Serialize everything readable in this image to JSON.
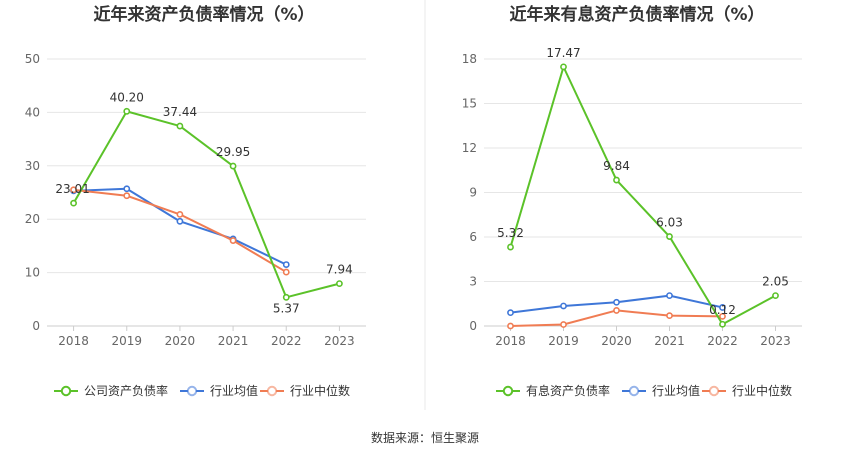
{
  "chart_data": [
    {
      "type": "line",
      "title": "近年来资产负债率情况（%）",
      "categories": [
        "2018",
        "2019",
        "2020",
        "2021",
        "2022",
        "2023"
      ],
      "ylim": [
        0,
        50
      ],
      "yticks": [
        0,
        10,
        20,
        30,
        40,
        50
      ],
      "series": [
        {
          "name": "公司资产负债率",
          "color": "#5bc229",
          "values": [
            23.01,
            40.2,
            37.44,
            29.95,
            5.37,
            7.94
          ],
          "labels": [
            "23.01",
            "40.20",
            "37.44",
            "29.95",
            "5.37",
            "7.94"
          ]
        },
        {
          "name": "行业均值",
          "color": "#3f77d8",
          "values": [
            25.3,
            25.7,
            19.6,
            16.3,
            11.5,
            null
          ]
        },
        {
          "name": "行业中位数",
          "color": "#f07c53",
          "values": [
            25.5,
            24.4,
            20.9,
            16.0,
            10.1,
            null
          ]
        }
      ]
    },
    {
      "type": "line",
      "title": "近年来有息资产负债率情况（%）",
      "categories": [
        "2018",
        "2019",
        "2020",
        "2021",
        "2022",
        "2023"
      ],
      "ylim": [
        0,
        18
      ],
      "yticks": [
        0,
        3,
        6,
        9,
        12,
        15,
        18
      ],
      "series": [
        {
          "name": "有息资产负债率",
          "color": "#5bc229",
          "values": [
            5.32,
            17.47,
            9.84,
            6.03,
            0.12,
            2.05
          ],
          "labels": [
            "5.32",
            "17.47",
            "9.84",
            "6.03",
            "0.12",
            "2.05"
          ]
        },
        {
          "name": "行业均值",
          "color": "#3f77d8",
          "values": [
            0.9,
            1.35,
            1.6,
            2.05,
            1.25,
            null
          ]
        },
        {
          "name": "行业中位数",
          "color": "#f07c53",
          "values": [
            0.0,
            0.1,
            1.05,
            0.7,
            0.65,
            null
          ]
        }
      ]
    }
  ],
  "source": "数据来源：恒生聚源"
}
